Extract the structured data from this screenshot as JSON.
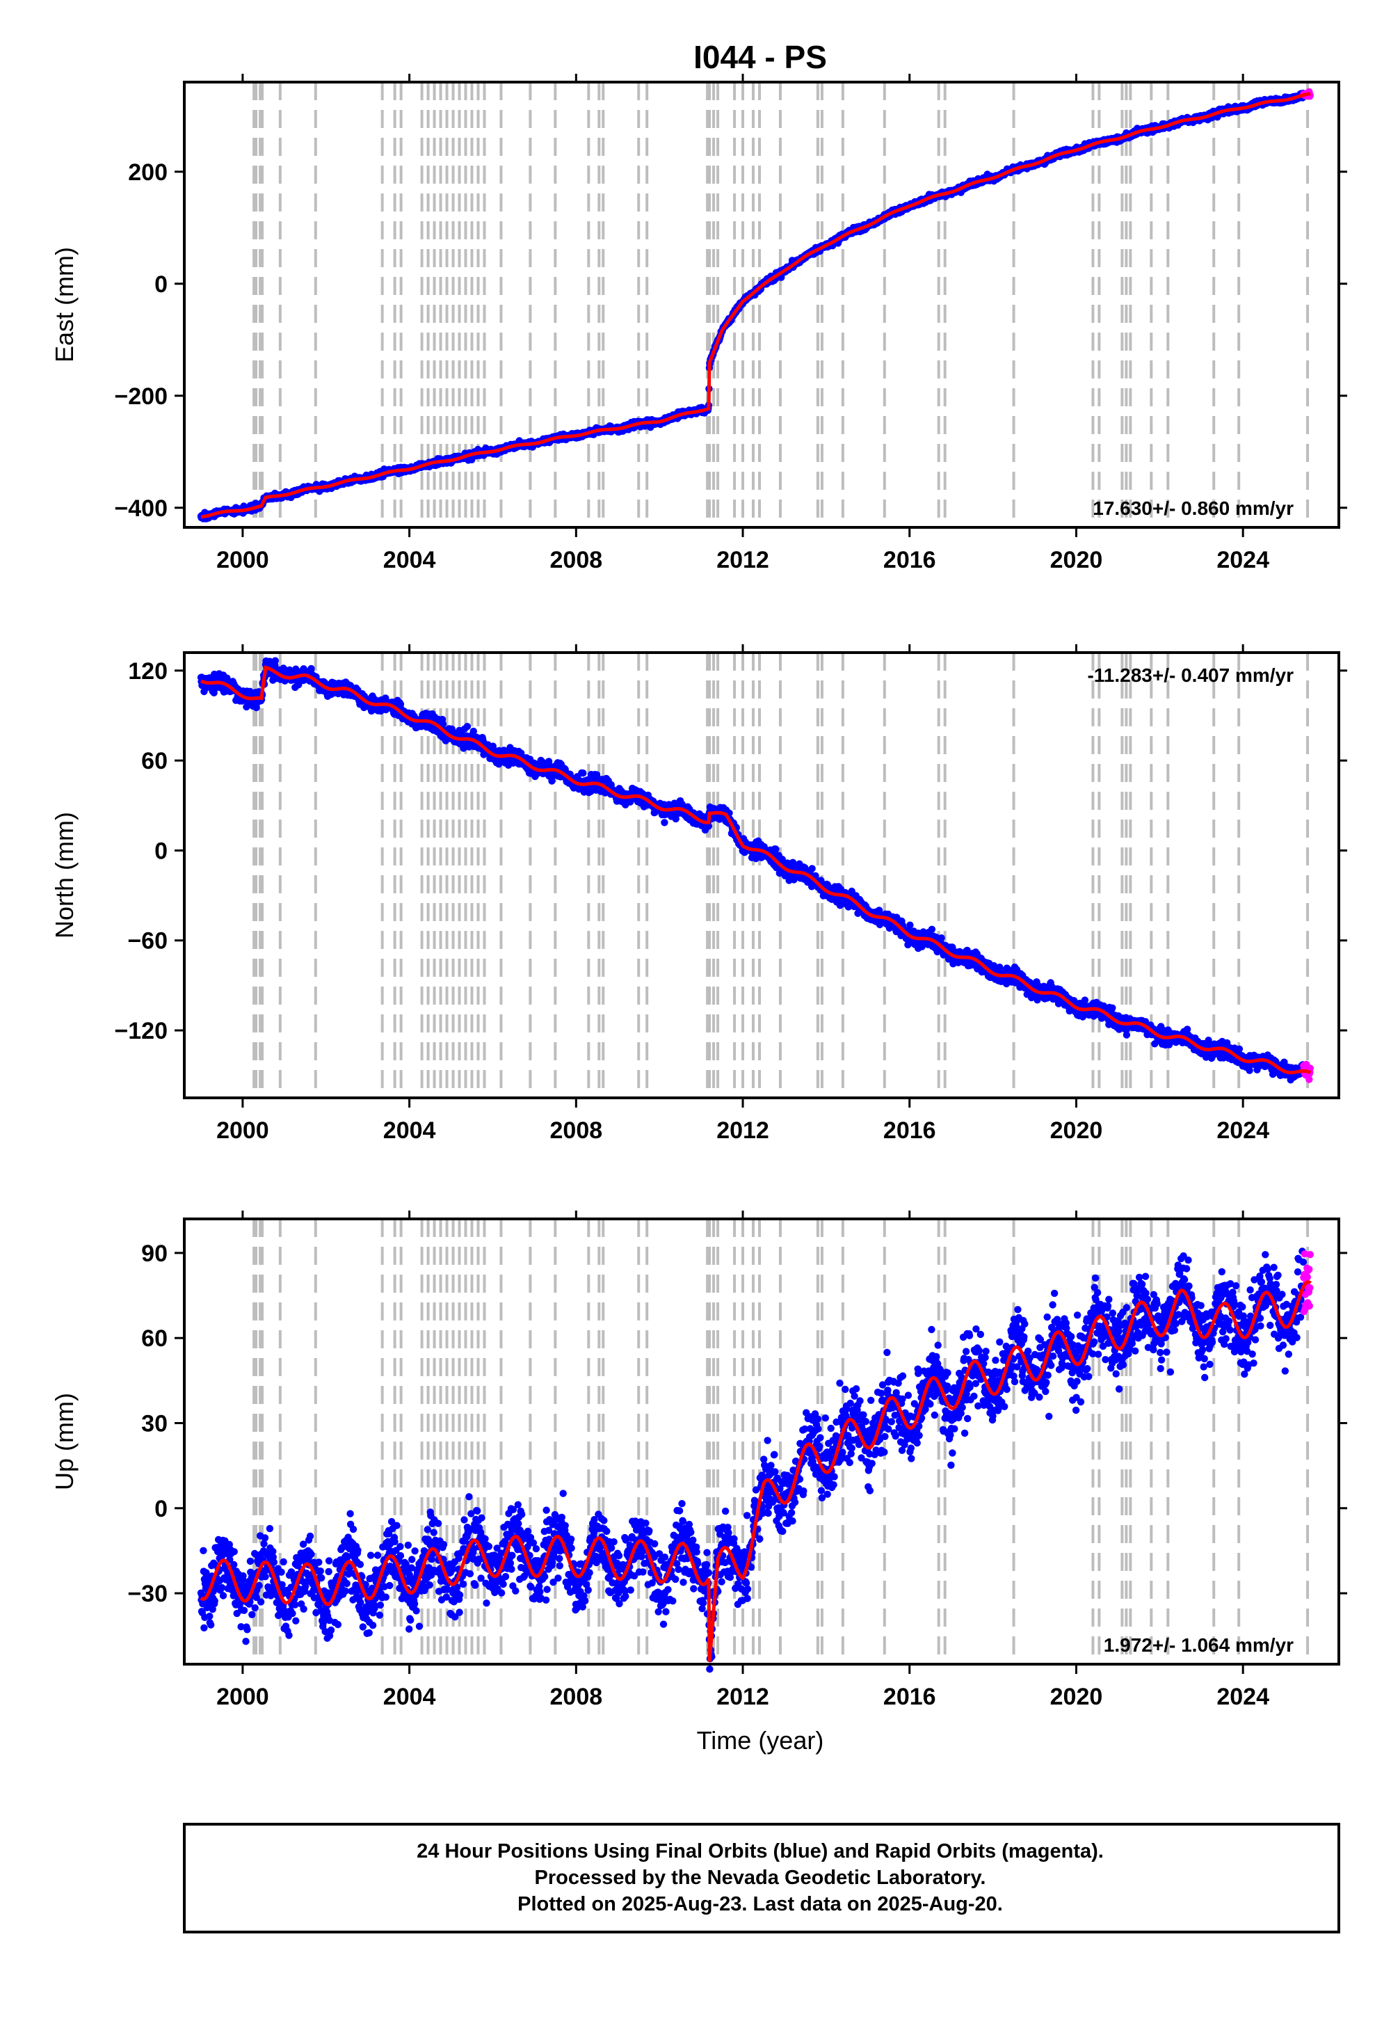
{
  "title": "I044 - PS",
  "colors": {
    "final_orbits": "#0000ff",
    "rapid_orbits": "#ff00ff",
    "model": "#ff0000",
    "event_lines": "#bdbdbd",
    "frame": "#000000"
  },
  "footer": {
    "line1": "24 Hour Positions Using Final Orbits (blue) and Rapid Orbits (magenta).",
    "line2": "Processed by the Nevada Geodetic Laboratory.",
    "line3": "Plotted on 2025-Aug-23. Last data on 2025-Aug-20."
  },
  "chart_data": [
    {
      "type": "scatter",
      "component": "east",
      "ylabel": "East (mm)",
      "xlabel": "",
      "rate_label": "17.630+/- 0.860 mm/yr",
      "rate_position": "bottom-right",
      "xlim": [
        1998.6,
        2026.3
      ],
      "ylim": [
        -435,
        360
      ],
      "xticks": [
        2000,
        2004,
        2008,
        2012,
        2016,
        2020,
        2024
      ],
      "yticks": [
        -400,
        -200,
        0,
        200
      ],
      "ytick_labels": [
        "−400",
        "−200",
        "0",
        "200"
      ],
      "scatter_noise_mm": 2.5,
      "rapid_from": 2025.45,
      "model_trend": [
        [
          1999.0,
          -415
        ],
        [
          2000.45,
          -398
        ],
        [
          2000.55,
          -383
        ],
        [
          2001.0,
          -376
        ],
        [
          2002.0,
          -361
        ],
        [
          2004.0,
          -330
        ],
        [
          2006.0,
          -298
        ],
        [
          2008.0,
          -270
        ],
        [
          2010.0,
          -245
        ],
        [
          2011.18,
          -222
        ],
        [
          2011.2,
          -140
        ],
        [
          2011.5,
          -85
        ],
        [
          2012.0,
          -30
        ],
        [
          2013.0,
          25
        ],
        [
          2014.0,
          70
        ],
        [
          2016.0,
          140
        ],
        [
          2018.0,
          190
        ],
        [
          2020.0,
          240
        ],
        [
          2022.0,
          280
        ],
        [
          2024.0,
          315
        ],
        [
          2025.62,
          338
        ]
      ],
      "seasonal_amplitude_mm": 1.5
    },
    {
      "type": "scatter",
      "component": "north",
      "ylabel": "North (mm)",
      "xlabel": "",
      "rate_label": "-11.283+/- 0.407 mm/yr",
      "rate_position": "top-right",
      "xlim": [
        1998.6,
        2026.3
      ],
      "ylim": [
        -165,
        132
      ],
      "xticks": [
        2000,
        2004,
        2008,
        2012,
        2016,
        2020,
        2024
      ],
      "yticks": [
        -120,
        -60,
        0,
        60,
        120
      ],
      "ytick_labels": [
        "−120",
        "−60",
        "0",
        "60",
        "120"
      ],
      "scatter_noise_mm": 2.5,
      "rapid_from": 2025.45,
      "model_trend": [
        [
          1999.0,
          115
        ],
        [
          2000.45,
          100
        ],
        [
          2000.55,
          120
        ],
        [
          2001.5,
          115
        ],
        [
          2002.5,
          106
        ],
        [
          2004.0,
          90
        ],
        [
          2006.0,
          66
        ],
        [
          2008.0,
          47
        ],
        [
          2010.0,
          30
        ],
        [
          2011.18,
          20
        ],
        [
          2011.2,
          26
        ],
        [
          2011.6,
          22
        ],
        [
          2012.0,
          5
        ],
        [
          2014.0,
          -25
        ],
        [
          2016.0,
          -55
        ],
        [
          2018.0,
          -80
        ],
        [
          2020.0,
          -103
        ],
        [
          2022.0,
          -122
        ],
        [
          2024.0,
          -138
        ],
        [
          2025.62,
          -150
        ]
      ],
      "seasonal_amplitude_mm": 2
    },
    {
      "type": "scatter",
      "component": "up",
      "ylabel": "Up (mm)",
      "xlabel": "Time (year)",
      "rate_label": "1.972+/- 1.064 mm/yr",
      "rate_position": "bottom-right",
      "xlim": [
        1998.6,
        2026.3
      ],
      "ylim": [
        -55,
        102
      ],
      "xticks": [
        2000,
        2004,
        2008,
        2012,
        2016,
        2020,
        2024
      ],
      "yticks": [
        -30,
        0,
        30,
        60,
        90
      ],
      "ytick_labels": [
        "−30",
        "0",
        "30",
        "60",
        "90"
      ],
      "scatter_noise_mm": 6,
      "rapid_from": 2025.45,
      "model_trend": [
        [
          1999.0,
          -25
        ],
        [
          2002.0,
          -27
        ],
        [
          2004.0,
          -23
        ],
        [
          2006.0,
          -17
        ],
        [
          2008.0,
          -17
        ],
        [
          2010.0,
          -19
        ],
        [
          2011.18,
          -20
        ],
        [
          2011.2,
          -50
        ],
        [
          2011.4,
          -22
        ],
        [
          2012.0,
          -18
        ],
        [
          2012.5,
          2
        ],
        [
          2013.5,
          15
        ],
        [
          2015.0,
          28
        ],
        [
          2017.0,
          42
        ],
        [
          2019.0,
          52
        ],
        [
          2021.0,
          63
        ],
        [
          2022.5,
          70
        ],
        [
          2023.5,
          65
        ],
        [
          2024.0,
          67
        ],
        [
          2025.62,
          73
        ]
      ],
      "seasonal_amplitude_mm": 7
    }
  ],
  "event_lines": [
    2000.27,
    2000.32,
    2000.42,
    2000.47,
    2000.9,
    2001.75,
    2003.35,
    2003.65,
    2003.8,
    2004.3,
    2004.45,
    2004.6,
    2004.75,
    2004.9,
    2005.05,
    2005.2,
    2005.35,
    2005.5,
    2005.65,
    2005.8,
    2006.2,
    2006.9,
    2007.5,
    2008.3,
    2008.55,
    2008.65,
    2009.5,
    2009.7,
    2011.15,
    2011.2,
    2011.3,
    2011.4,
    2011.8,
    2012.0,
    2012.25,
    2012.4,
    2012.9,
    2013.8,
    2013.9,
    2014.4,
    2015.4,
    2016.7,
    2016.85,
    2018.5,
    2020.4,
    2020.55,
    2021.1,
    2021.2,
    2021.3,
    2021.8,
    2022.2,
    2023.3,
    2023.9,
    2025.55
  ]
}
